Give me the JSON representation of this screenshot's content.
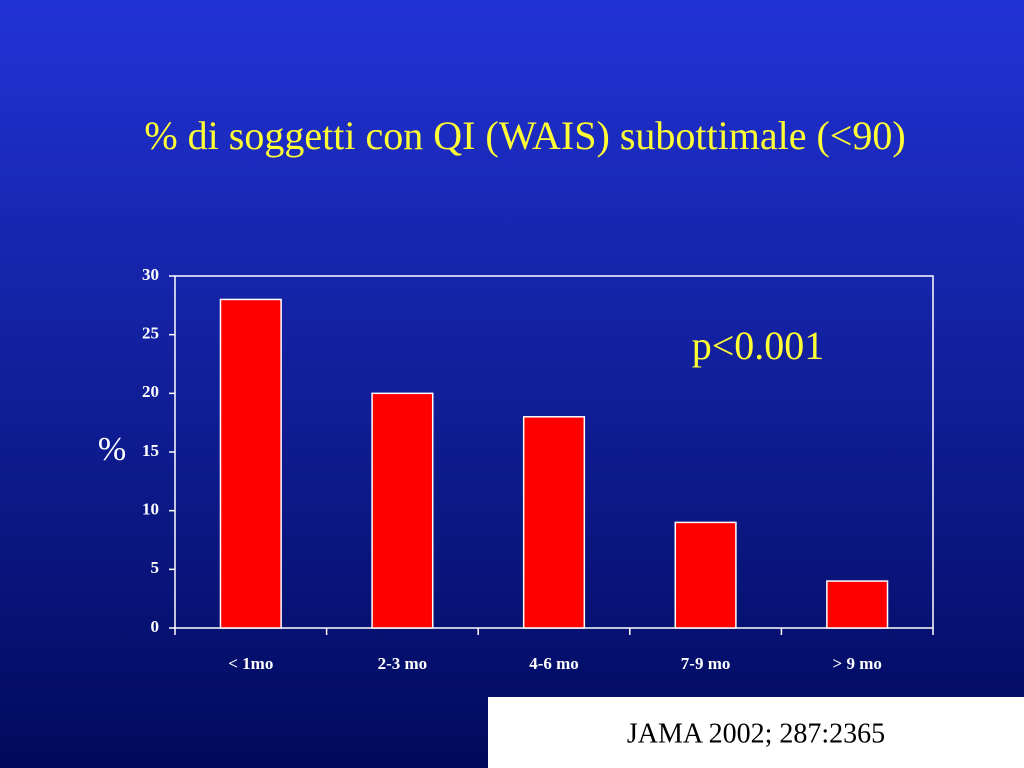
{
  "chart_data": {
    "type": "bar",
    "title": "% di soggetti con QI (WAIS) subottimale (<90)",
    "categories": [
      "< 1mo",
      "2-3 mo",
      "4-6 mo",
      "7-9 mo",
      "> 9 mo"
    ],
    "values": [
      28,
      20,
      18,
      9,
      4
    ],
    "color": "#ff0000",
    "ylabel": "%",
    "ylim": [
      0,
      30
    ],
    "yticks": [
      0,
      5,
      10,
      15,
      20,
      25,
      30
    ],
    "annotation": "p<0.001",
    "source": "JAMA 2002; 287:2365"
  }
}
